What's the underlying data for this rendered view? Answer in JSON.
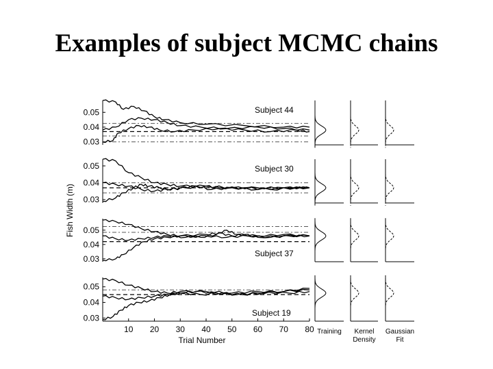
{
  "slide": {
    "title": "Examples of subject MCMC chains"
  },
  "chart_data": {
    "type": "line",
    "ylabel": "Fish Width (m)",
    "xlabel": "Trial Number",
    "xticks": [
      10,
      20,
      30,
      40,
      50,
      60,
      70,
      80
    ],
    "xlim": [
      0,
      80
    ],
    "density_labels": [
      "Training",
      "Kernel Density",
      "Gaussian Fit"
    ],
    "panels": [
      {
        "subject_label": "Subject 44",
        "ylim": [
          0.028,
          0.058
        ],
        "yticks": [
          0.03,
          0.04,
          0.05
        ],
        "ytick_labels": [
          "0.03",
          "0.04",
          "0.05"
        ],
        "ref_lines": {
          "dash_dot": [
            0.0425,
            0.034,
            0.03
          ],
          "dashed": [
            0.037
          ]
        },
        "density_center": 0.038,
        "series": [
          {
            "values": [
              [
                0,
                0.058
              ],
              [
                5,
                0.057
              ],
              [
                8,
                0.052
              ],
              [
                12,
                0.054
              ],
              [
                16,
                0.051
              ],
              [
                20,
                0.047
              ],
              [
                24,
                0.045
              ],
              [
                30,
                0.043
              ],
              [
                40,
                0.042
              ],
              [
                55,
                0.041
              ],
              [
                70,
                0.04
              ],
              [
                80,
                0.04
              ]
            ]
          },
          {
            "values": [
              [
                0,
                0.03
              ],
              [
                4,
                0.031
              ],
              [
                6,
                0.036
              ],
              [
                10,
                0.039
              ],
              [
                14,
                0.041
              ],
              [
                18,
                0.04
              ],
              [
                22,
                0.038
              ],
              [
                28,
                0.037
              ],
              [
                35,
                0.038
              ],
              [
                45,
                0.039
              ],
              [
                55,
                0.038
              ],
              [
                65,
                0.037
              ],
              [
                75,
                0.038
              ],
              [
                80,
                0.037
              ]
            ]
          },
          {
            "values": [
              [
                0,
                0.038
              ],
              [
                5,
                0.04
              ],
              [
                10,
                0.045
              ],
              [
                15,
                0.046
              ],
              [
                20,
                0.045
              ],
              [
                25,
                0.043
              ],
              [
                30,
                0.041
              ],
              [
                38,
                0.04
              ],
              [
                48,
                0.039
              ],
              [
                60,
                0.04
              ],
              [
                70,
                0.039
              ],
              [
                80,
                0.038
              ]
            ]
          }
        ]
      },
      {
        "subject_label": "Subject 30",
        "ylim": [
          0.028,
          0.054
        ],
        "yticks": [
          0.03,
          0.04,
          0.05
        ],
        "ytick_labels": [
          "0.03",
          "0.04",
          "0.05"
        ],
        "ref_lines": {
          "dash_dot": [
            0.04,
            0.034
          ],
          "dashed": [
            0.037
          ]
        },
        "density_center": 0.037,
        "series": [
          {
            "values": [
              [
                0,
                0.054
              ],
              [
                5,
                0.053
              ],
              [
                10,
                0.046
              ],
              [
                15,
                0.043
              ],
              [
                20,
                0.04
              ],
              [
                25,
                0.039
              ],
              [
                30,
                0.038
              ],
              [
                40,
                0.038
              ],
              [
                50,
                0.037
              ],
              [
                60,
                0.037
              ],
              [
                70,
                0.037
              ],
              [
                80,
                0.037
              ]
            ]
          },
          {
            "values": [
              [
                0,
                0.029
              ],
              [
                5,
                0.031
              ],
              [
                8,
                0.034
              ],
              [
                12,
                0.037
              ],
              [
                15,
                0.039
              ],
              [
                18,
                0.038
              ],
              [
                22,
                0.037
              ],
              [
                26,
                0.036
              ],
              [
                32,
                0.037
              ],
              [
                40,
                0.038
              ],
              [
                45,
                0.037
              ],
              [
                55,
                0.037
              ],
              [
                65,
                0.036
              ],
              [
                75,
                0.037
              ],
              [
                80,
                0.037
              ]
            ]
          },
          {
            "values": [
              [
                0,
                0.04
              ],
              [
                5,
                0.039
              ],
              [
                10,
                0.038
              ],
              [
                15,
                0.036
              ],
              [
                20,
                0.035
              ],
              [
                25,
                0.036
              ],
              [
                30,
                0.037
              ],
              [
                36,
                0.038
              ],
              [
                42,
                0.036
              ],
              [
                50,
                0.037
              ],
              [
                60,
                0.036
              ],
              [
                70,
                0.037
              ],
              [
                80,
                0.037
              ]
            ]
          }
        ]
      },
      {
        "subject_label": "Subject 37",
        "ylim": [
          0.028,
          0.058
        ],
        "yticks": [
          0.03,
          0.04,
          0.05
        ],
        "ytick_labels": [
          "0.03",
          "0.04",
          "0.05"
        ],
        "ref_lines": {
          "dash_dot": [
            0.0525,
            0.0485
          ],
          "dashed": [
            0.042
          ]
        },
        "density_center": 0.046,
        "series": [
          {
            "values": [
              [
                0,
                0.057
              ],
              [
                5,
                0.056
              ],
              [
                10,
                0.054
              ],
              [
                15,
                0.051
              ],
              [
                20,
                0.049
              ],
              [
                25,
                0.047
              ],
              [
                30,
                0.046
              ],
              [
                40,
                0.047
              ],
              [
                45,
                0.048
              ],
              [
                50,
                0.046
              ],
              [
                55,
                0.047
              ],
              [
                60,
                0.045
              ],
              [
                70,
                0.046
              ],
              [
                80,
                0.046
              ]
            ]
          },
          {
            "values": [
              [
                0,
                0.029
              ],
              [
                5,
                0.03
              ],
              [
                8,
                0.033
              ],
              [
                12,
                0.038
              ],
              [
                16,
                0.042
              ],
              [
                20,
                0.044
              ],
              [
                25,
                0.045
              ],
              [
                30,
                0.046
              ],
              [
                38,
                0.045
              ],
              [
                44,
                0.047
              ],
              [
                48,
                0.05
              ],
              [
                52,
                0.047
              ],
              [
                60,
                0.046
              ],
              [
                70,
                0.047
              ],
              [
                80,
                0.046
              ]
            ]
          },
          {
            "values": [
              [
                0,
                0.046
              ],
              [
                5,
                0.044
              ],
              [
                10,
                0.043
              ],
              [
                15,
                0.044
              ],
              [
                20,
                0.045
              ],
              [
                25,
                0.046
              ],
              [
                32,
                0.045
              ],
              [
                40,
                0.046
              ],
              [
                48,
                0.045
              ],
              [
                56,
                0.046
              ],
              [
                65,
                0.045
              ],
              [
                72,
                0.046
              ],
              [
                80,
                0.046
              ]
            ]
          }
        ]
      },
      {
        "subject_label": "Subject 19",
        "ylim": [
          0.028,
          0.056
        ],
        "yticks": [
          0.03,
          0.04,
          0.05
        ],
        "ytick_labels": [
          "0.03",
          "0.04",
          "0.05"
        ],
        "ref_lines": {
          "dash_dot": [
            0.048
          ],
          "dashed": [
            0.045
          ]
        },
        "density_center": 0.046,
        "series": [
          {
            "values": [
              [
                0,
                0.055
              ],
              [
                5,
                0.054
              ],
              [
                10,
                0.051
              ],
              [
                15,
                0.049
              ],
              [
                20,
                0.047
              ],
              [
                25,
                0.046
              ],
              [
                30,
                0.047
              ],
              [
                40,
                0.047
              ],
              [
                50,
                0.046
              ],
              [
                60,
                0.047
              ],
              [
                70,
                0.047
              ],
              [
                80,
                0.048
              ]
            ]
          },
          {
            "values": [
              [
                0,
                0.029
              ],
              [
                4,
                0.031
              ],
              [
                7,
                0.035
              ],
              [
                10,
                0.038
              ],
              [
                14,
                0.04
              ],
              [
                18,
                0.041
              ],
              [
                22,
                0.043
              ],
              [
                26,
                0.045
              ],
              [
                30,
                0.046
              ],
              [
                36,
                0.047
              ],
              [
                44,
                0.046
              ],
              [
                52,
                0.045
              ],
              [
                60,
                0.046
              ],
              [
                70,
                0.047
              ],
              [
                80,
                0.049
              ]
            ]
          },
          {
            "values": [
              [
                0,
                0.044
              ],
              [
                5,
                0.043
              ],
              [
                10,
                0.042
              ],
              [
                15,
                0.043
              ],
              [
                20,
                0.044
              ],
              [
                25,
                0.045
              ],
              [
                30,
                0.046
              ],
              [
                38,
                0.045
              ],
              [
                46,
                0.046
              ],
              [
                54,
                0.045
              ],
              [
                62,
                0.046
              ],
              [
                72,
                0.046
              ],
              [
                80,
                0.047
              ]
            ]
          }
        ]
      }
    ]
  }
}
